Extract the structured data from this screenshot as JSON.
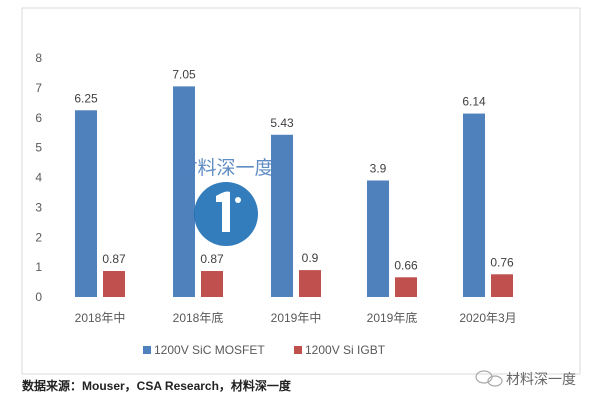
{
  "chart_data": {
    "type": "bar",
    "title": "",
    "xlabel": "",
    "ylabel": "",
    "ylim": [
      0,
      8
    ],
    "yticks": [
      "0",
      "1",
      "2",
      "3",
      "4",
      "5",
      "6",
      "7",
      "8"
    ],
    "grid": false,
    "legend_placement": "bottom",
    "categories": [
      "2018年中",
      "2018年底",
      "2019年中",
      "2019年底",
      "2020年3月"
    ],
    "series": [
      {
        "name": "1200V SiC MOSFET",
        "color": "#4f81bd",
        "values": [
          6.25,
          7.05,
          5.43,
          3.9,
          6.14
        ],
        "labels": [
          "6.25",
          "7.05",
          "5.43",
          "3.9",
          "6.14"
        ]
      },
      {
        "name": "1200V Si IGBT",
        "color": "#c0504d",
        "values": [
          0.87,
          0.87,
          0.9,
          0.66,
          0.76
        ],
        "labels": [
          "0.87",
          "0.87",
          "0.9",
          "0.66",
          "0.76"
        ]
      }
    ]
  },
  "source_note": "数据来源：Mouser，CSA Research，材料深一度",
  "watermark": {
    "text": "材料深一度",
    "icon": "wechat-icon"
  },
  "center_watermark": {
    "text": "材料深一度",
    "icon": "logo-icon"
  }
}
